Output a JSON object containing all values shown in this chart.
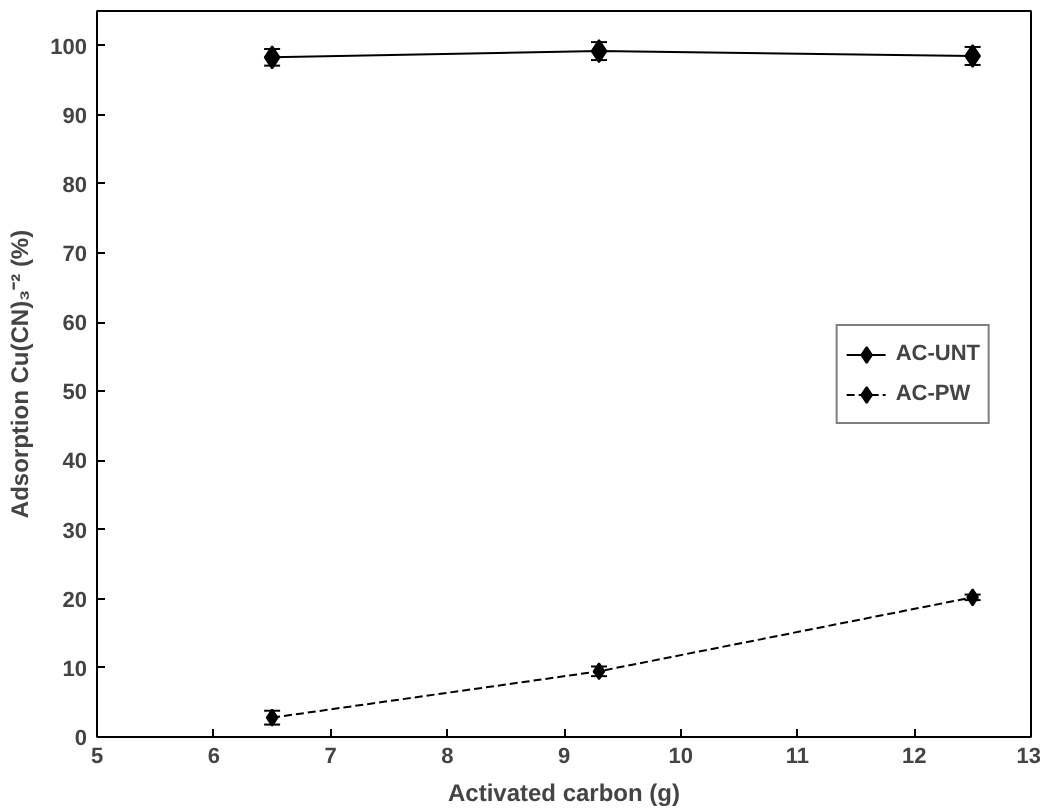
{
  "chart_data": {
    "type": "line",
    "xlabel": "Activated carbon (g)",
    "ylabel": "Adsorption Cu(CN)₃⁻² (%)",
    "x": [
      6.5,
      9.3,
      12.5
    ],
    "series": [
      {
        "name": "AC-UNT",
        "color": "#000000",
        "values": [
          98.3,
          99.2,
          98.5
        ],
        "errors": [
          1.2,
          1.3,
          1.3
        ],
        "line_style": "solid"
      },
      {
        "name": "AC-PW",
        "color": "#000000",
        "values": [
          2.8,
          9.5,
          20.2
        ],
        "errors": [
          1.0,
          0.7,
          0.4
        ],
        "line_style": "dashed"
      }
    ],
    "xlim": [
      5,
      13
    ],
    "xticks": [
      5,
      6,
      7,
      8,
      9,
      10,
      11,
      12,
      13
    ],
    "ylim": [
      0,
      105
    ],
    "yticks": [
      0,
      10,
      20,
      30,
      40,
      50,
      60,
      70,
      80,
      90,
      100
    ],
    "grid": false,
    "legend": "right",
    "marker": "diamond"
  }
}
